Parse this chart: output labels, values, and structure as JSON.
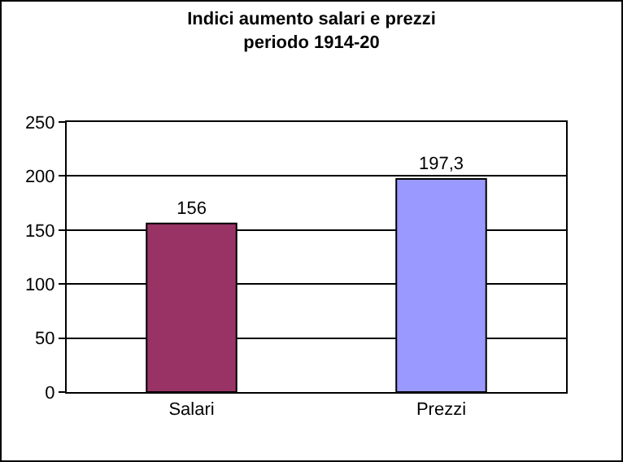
{
  "chart_data": {
    "type": "bar",
    "title": "Indici aumento salari e prezzi\nperiodo 1914-20",
    "categories": [
      "Salari",
      "Prezzi"
    ],
    "values": [
      156,
      197.3
    ],
    "colors": [
      "#993366",
      "#9999ff"
    ],
    "value_labels": [
      "156",
      "197,3"
    ],
    "ylim": [
      0,
      250
    ],
    "yticks": [
      0,
      50,
      100,
      150,
      200,
      250
    ],
    "grid": "y",
    "legend": false
  }
}
